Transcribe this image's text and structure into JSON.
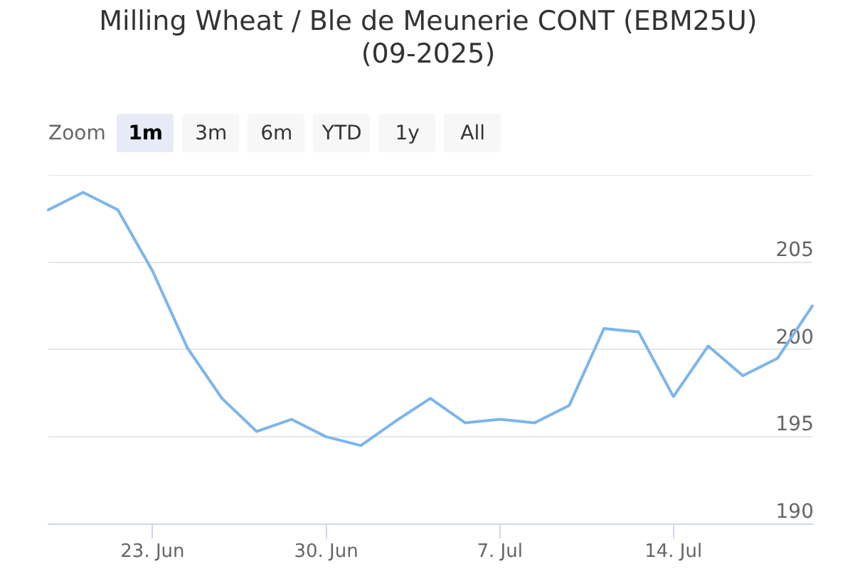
{
  "chart_data": {
    "type": "line",
    "title": "Milling Wheat / Ble de Meunerie CONT (EBM25U) (09-2025)",
    "categories": [
      null,
      null,
      null,
      "23. Jun",
      null,
      null,
      null,
      null,
      "30. Jun",
      null,
      null,
      null,
      null,
      "7. Jul",
      null,
      null,
      null,
      null,
      "14. Jul",
      null,
      null,
      null,
      null
    ],
    "values": [
      208.0,
      209.0,
      208.0,
      204.5,
      200.1,
      197.2,
      195.3,
      196.0,
      195.0,
      194.5,
      195.9,
      197.2,
      195.8,
      196.0,
      195.8,
      196.8,
      201.2,
      201.0,
      197.3,
      200.2,
      198.5,
      199.5,
      202.5
    ],
    "color": "#7cb5ec",
    "ylim": [
      190,
      210
    ],
    "yticks": [
      190,
      195,
      200,
      205,
      {
        "value": 210,
        "label": null
      }
    ],
    "grid": "y",
    "annotations": [
      "Zoom",
      "1m",
      "3m",
      "6m",
      "YTD",
      "1y",
      "All"
    ]
  }
}
